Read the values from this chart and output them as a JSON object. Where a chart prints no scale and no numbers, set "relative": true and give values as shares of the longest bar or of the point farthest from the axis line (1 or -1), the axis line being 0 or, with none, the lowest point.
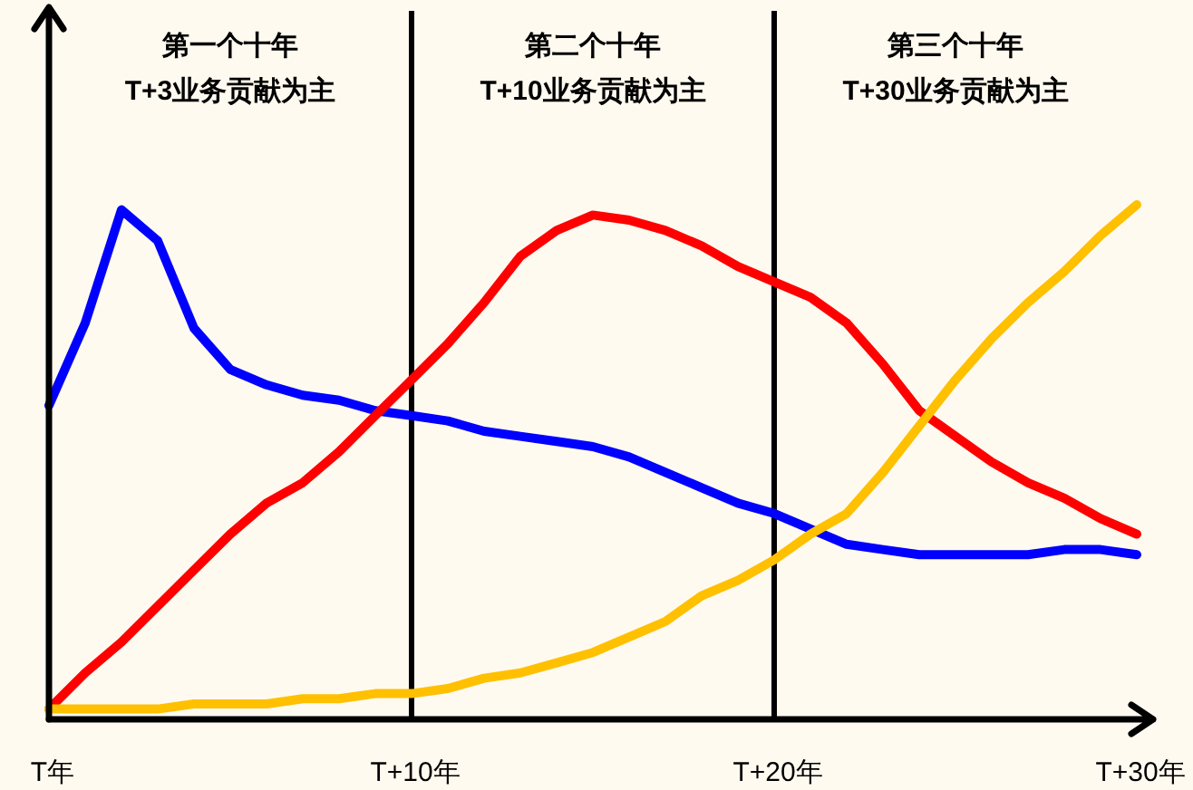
{
  "chart_data": {
    "type": "line",
    "relative": true,
    "categories": [
      "T年",
      null,
      null,
      null,
      null,
      null,
      null,
      null,
      null,
      null,
      "T+10年",
      null,
      null,
      null,
      null,
      null,
      null,
      null,
      null,
      null,
      "T+20年",
      null,
      null,
      null,
      null,
      null,
      null,
      null,
      null,
      null,
      "T+30年"
    ],
    "ref_lines": [
      {
        "axis": "x",
        "value": "T+10年",
        "color": "#000000"
      },
      {
        "axis": "x",
        "value": "T+20年",
        "color": "#000000"
      }
    ],
    "annotations": [
      "第一个十年\nT+3业务贡献为主",
      "第二个十年\nT+10业务贡献为主",
      "第三个十年\nT+30业务贡献为主"
    ],
    "series": [
      {
        "color": "#0000ff",
        "values": [
          0.61,
          0.77,
          0.99,
          0.93,
          0.76,
          0.68,
          0.65,
          0.63,
          0.62,
          0.6,
          0.59,
          0.58,
          0.56,
          0.55,
          0.54,
          0.53,
          0.51,
          0.48,
          0.45,
          0.42,
          0.4,
          0.37,
          0.34,
          0.33,
          0.32,
          0.32,
          0.32,
          0.32,
          0.33,
          0.33,
          0.32
        ]
      },
      {
        "color": "#ff0000",
        "values": [
          0.02,
          0.09,
          0.15,
          0.22,
          0.29,
          0.36,
          0.42,
          0.46,
          0.52,
          0.59,
          0.66,
          0.73,
          0.81,
          0.9,
          0.95,
          0.98,
          0.97,
          0.95,
          0.92,
          0.88,
          0.85,
          0.82,
          0.77,
          0.69,
          0.6,
          0.55,
          0.5,
          0.46,
          0.43,
          0.39,
          0.36
        ]
      },
      {
        "color": "#ffc000",
        "values": [
          0.02,
          0.02,
          0.02,
          0.02,
          0.03,
          0.03,
          0.03,
          0.04,
          0.04,
          0.05,
          0.05,
          0.06,
          0.08,
          0.09,
          0.11,
          0.13,
          0.16,
          0.19,
          0.24,
          0.27,
          0.31,
          0.36,
          0.4,
          0.48,
          0.57,
          0.66,
          0.74,
          0.81,
          0.87,
          0.94,
          1.0
        ]
      }
    ]
  }
}
